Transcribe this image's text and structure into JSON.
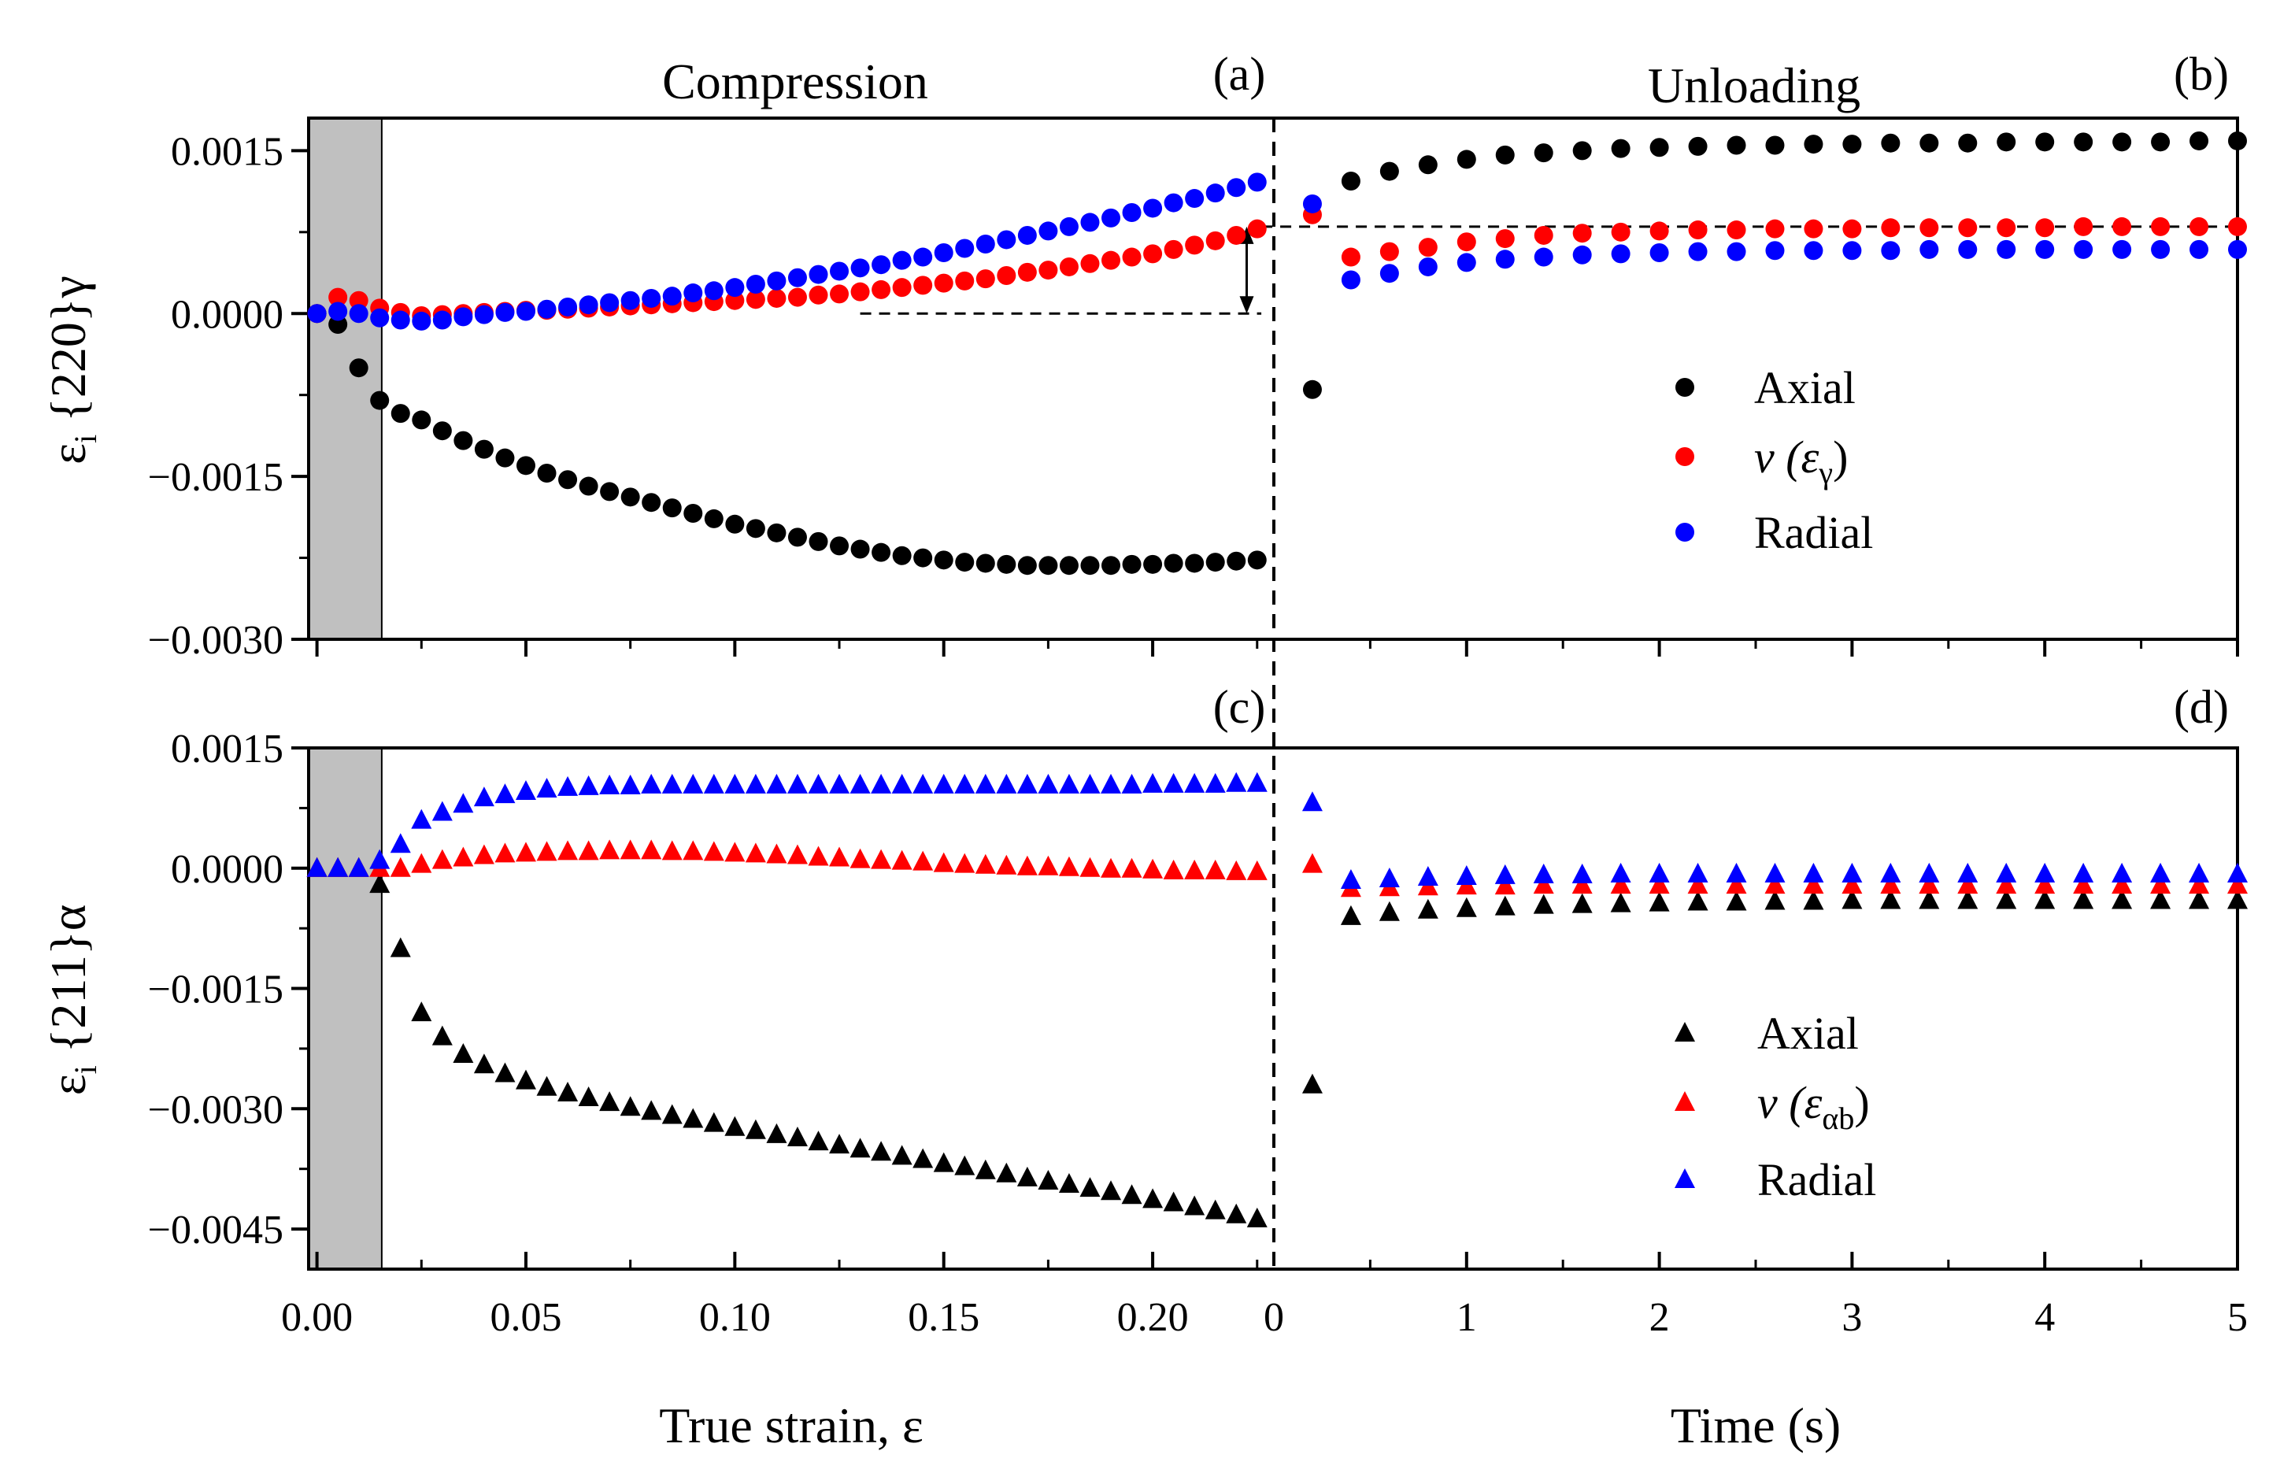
{
  "chart_data": {
    "type": "scatter",
    "colors": {
      "axial": "#000000",
      "nu": "#ff0000",
      "radial": "#0000ff",
      "shade": "#c0c0c0"
    },
    "titles": {
      "compression": "Compression",
      "unloading": "Unloading"
    },
    "panel_tags": {
      "a": "(a)",
      "b": "(b)",
      "c": "(c)",
      "d": "(d)"
    },
    "xlabels": {
      "left": "True strain, ε",
      "right": "Time (s)"
    },
    "ylabels": {
      "top": {
        "eps": "ε",
        "sub": "i",
        "rest": " {220}γ"
      },
      "bottom": {
        "eps": "ε",
        "sub": "i",
        "rest": " {211}α"
      }
    },
    "xticks_left": [
      "0.00",
      "0.05",
      "0.10",
      "0.15",
      "0.20"
    ],
    "xtick_right_zero": "0",
    "xticks_right": [
      "1",
      "2",
      "3",
      "4",
      "5"
    ],
    "yticks_top": [
      "0.0015",
      "0.0000",
      "−0.0015",
      "−0.0030"
    ],
    "yticks_bottom": [
      "0.0015",
      "0.0000",
      "−0.0015",
      "−0.0030",
      "−0.0045"
    ],
    "legend_top": {
      "axial": "Axial",
      "nu_prefix": "ν (ε",
      "nu_sub": "γ",
      "nu_suffix": ")",
      "radial": "Radial"
    },
    "legend_bottom": {
      "axial": "Axial",
      "nu_prefix": "ν (ε",
      "nu_sub": "αb",
      "nu_suffix": ")",
      "radial": "Radial"
    },
    "axes": {
      "compression_xlim": [
        -0.002,
        0.229
      ],
      "unloading_xlim": [
        0,
        5
      ],
      "top_ylim": [
        -0.003,
        0.0018
      ],
      "bottom_ylim": [
        -0.005,
        0.0015
      ],
      "shaded_strain_range": [
        -0.002,
        0.0155
      ],
      "nu_top_reference": 0.0008
    },
    "series": {
      "gamma_220": {
        "compression": {
          "strain_start": 0.0,
          "strain_step": 0.005,
          "axial": [
            0,
            -0.0001,
            -0.0005,
            -0.0008,
            -0.00092,
            -0.00098,
            -0.00108,
            -0.00117,
            -0.00125,
            -0.00133,
            -0.0014,
            -0.00147,
            -0.00153,
            -0.00159,
            -0.00164,
            -0.00169,
            -0.00174,
            -0.00179,
            -0.00184,
            -0.00189,
            -0.00194,
            -0.00198,
            -0.00202,
            -0.00206,
            -0.0021,
            -0.00214,
            -0.00217,
            -0.0022,
            -0.00223,
            -0.00225,
            -0.00227,
            -0.00229,
            -0.0023,
            -0.00231,
            -0.00232,
            -0.00232,
            -0.00232,
            -0.00232,
            -0.00232,
            -0.00231,
            -0.00231,
            -0.0023,
            -0.0023,
            -0.00229,
            -0.00228,
            -0.00227
          ],
          "nu": [
            0,
            0.00015,
            0.00012,
            5e-05,
            1e-05,
            -2e-05,
            -1e-05,
            0,
            1e-05,
            2e-05,
            3e-05,
            3e-05,
            4e-05,
            5e-05,
            6e-05,
            7e-05,
            8e-05,
            9e-05,
            0.0001,
            0.00011,
            0.00012,
            0.00013,
            0.00014,
            0.00015,
            0.00017,
            0.00018,
            0.0002,
            0.00022,
            0.00024,
            0.00026,
            0.00028,
            0.0003,
            0.00032,
            0.00035,
            0.00038,
            0.0004,
            0.00043,
            0.00046,
            0.00049,
            0.00052,
            0.00055,
            0.00059,
            0.00063,
            0.00067,
            0.00072,
            0.00078
          ],
          "radial": [
            0,
            2e-05,
            0,
            -4e-05,
            -6e-05,
            -7e-05,
            -6e-05,
            -3e-05,
            -1e-05,
            1e-05,
            2e-05,
            4e-05,
            6e-05,
            8e-05,
            0.0001,
            0.00012,
            0.00014,
            0.00016,
            0.00019,
            0.00021,
            0.00024,
            0.00027,
            0.0003,
            0.00033,
            0.00036,
            0.00039,
            0.00042,
            0.00045,
            0.00049,
            0.00052,
            0.00056,
            0.0006,
            0.00064,
            0.00068,
            0.00072,
            0.00076,
            0.0008,
            0.00084,
            0.00088,
            0.00093,
            0.00097,
            0.00102,
            0.00106,
            0.00111,
            0.00116,
            0.00121
          ]
        },
        "unloading": {
          "time": [
            0.2,
            0.4,
            0.6,
            0.8,
            1.0,
            1.2,
            1.4,
            1.6,
            1.8,
            2.0,
            2.2,
            2.4,
            2.6,
            2.8,
            3.0,
            3.2,
            3.4,
            3.6,
            3.8,
            4.0,
            4.2,
            4.4,
            4.6,
            4.8,
            5.0
          ],
          "axial": [
            -0.0007,
            0.00122,
            0.00131,
            0.00137,
            0.00142,
            0.00146,
            0.00148,
            0.0015,
            0.00152,
            0.00153,
            0.00154,
            0.00155,
            0.00155,
            0.00156,
            0.00156,
            0.00157,
            0.00157,
            0.00157,
            0.00158,
            0.00158,
            0.00158,
            0.00158,
            0.00158,
            0.00159,
            0.00159
          ],
          "nu": [
            0.00091,
            0.00052,
            0.00057,
            0.00061,
            0.00066,
            0.00069,
            0.00072,
            0.00074,
            0.00075,
            0.00076,
            0.00077,
            0.00077,
            0.00078,
            0.00078,
            0.00078,
            0.00079,
            0.00079,
            0.00079,
            0.00079,
            0.00079,
            0.0008,
            0.0008,
            0.0008,
            0.0008,
            0.0008
          ],
          "radial": [
            0.00101,
            0.00031,
            0.00037,
            0.00043,
            0.00047,
            0.0005,
            0.00052,
            0.00054,
            0.00055,
            0.00056,
            0.00057,
            0.00057,
            0.00058,
            0.00058,
            0.00058,
            0.00058,
            0.00059,
            0.00059,
            0.00059,
            0.00059,
            0.00059,
            0.00059,
            0.00059,
            0.00059,
            0.00059
          ]
        }
      },
      "alpha_211": {
        "compression": {
          "strain_start": 0.0,
          "strain_step": 0.005,
          "axial": [
            0,
            0,
            0,
            -0.0002,
            -0.001,
            -0.0018,
            -0.0021,
            -0.00232,
            -0.00245,
            -0.00256,
            -0.00265,
            -0.00273,
            -0.0028,
            -0.00286,
            -0.00292,
            -0.00298,
            -0.00303,
            -0.00308,
            -0.00313,
            -0.00318,
            -0.00323,
            -0.00327,
            -0.00332,
            -0.00336,
            -0.00341,
            -0.00345,
            -0.0035,
            -0.00354,
            -0.00359,
            -0.00363,
            -0.00368,
            -0.00372,
            -0.00377,
            -0.00381,
            -0.00386,
            -0.0039,
            -0.00394,
            -0.00399,
            -0.00403,
            -0.00408,
            -0.00413,
            -0.00417,
            -0.00422,
            -0.00427,
            -0.00432,
            -0.00437
          ],
          "nu": [
            0,
            0,
            0,
            0,
            0,
            5e-05,
            0.0001,
            0.00013,
            0.00016,
            0.00018,
            0.00019,
            0.0002,
            0.00021,
            0.00021,
            0.00022,
            0.00022,
            0.00022,
            0.00021,
            0.00021,
            0.0002,
            0.00019,
            0.00018,
            0.00017,
            0.00016,
            0.00014,
            0.00013,
            0.00011,
            0.0001,
            9e-05,
            8e-05,
            6e-05,
            5e-05,
            4e-05,
            3e-05,
            2e-05,
            2e-05,
            1e-05,
            0,
            -1e-05,
            -1e-05,
            -2e-05,
            -3e-05,
            -3e-05,
            -3e-05,
            -4e-05,
            -4e-05
          ],
          "radial": [
            0,
            0,
            0,
            0.0001,
            0.0003,
            0.0006,
            0.0007,
            0.0008,
            0.00088,
            0.00092,
            0.00096,
            0.00099,
            0.00101,
            0.00102,
            0.00103,
            0.00103,
            0.00104,
            0.00104,
            0.00104,
            0.00104,
            0.00104,
            0.00104,
            0.00104,
            0.00104,
            0.00104,
            0.00104,
            0.00104,
            0.00104,
            0.00104,
            0.00104,
            0.00104,
            0.00104,
            0.00104,
            0.00104,
            0.00104,
            0.00104,
            0.00104,
            0.00104,
            0.00104,
            0.00104,
            0.00105,
            0.00105,
            0.00105,
            0.00105,
            0.00106,
            0.00106
          ]
        },
        "unloading": {
          "time": [
            0.2,
            0.4,
            0.6,
            0.8,
            1.0,
            1.2,
            1.4,
            1.6,
            1.8,
            2.0,
            2.2,
            2.4,
            2.6,
            2.8,
            3.0,
            3.2,
            3.4,
            3.6,
            3.8,
            4.0,
            4.2,
            4.4,
            4.6,
            4.8,
            5.0
          ],
          "axial": [
            -0.0027,
            -0.0006,
            -0.00055,
            -0.00052,
            -0.0005,
            -0.00048,
            -0.00046,
            -0.00045,
            -0.00044,
            -0.00043,
            -0.00042,
            -0.00042,
            -0.00041,
            -0.00041,
            -0.0004,
            -0.0004,
            -0.0004,
            -0.0004,
            -0.0004,
            -0.0004,
            -0.0004,
            -0.0004,
            -0.0004,
            -0.0004,
            -0.0004
          ],
          "nu": [
            5e-05,
            -0.00025,
            -0.00024,
            -0.00023,
            -0.00022,
            -0.00022,
            -0.00021,
            -0.00021,
            -0.00021,
            -0.00021,
            -0.00021,
            -0.00021,
            -0.00021,
            -0.00021,
            -0.00021,
            -0.00021,
            -0.00021,
            -0.00021,
            -0.00021,
            -0.00021,
            -0.00021,
            -0.00021,
            -0.00021,
            -0.00021,
            -0.00021
          ],
          "radial": [
            0.00082,
            -0.00015,
            -0.00013,
            -0.00011,
            -0.0001,
            -9e-05,
            -8e-05,
            -8e-05,
            -7e-05,
            -7e-05,
            -7e-05,
            -7e-05,
            -7e-05,
            -7e-05,
            -7e-05,
            -7e-05,
            -7e-05,
            -7e-05,
            -7e-05,
            -7e-05,
            -7e-05,
            -7e-05,
            -7e-05,
            -7e-05,
            -7e-05
          ]
        }
      }
    }
  }
}
